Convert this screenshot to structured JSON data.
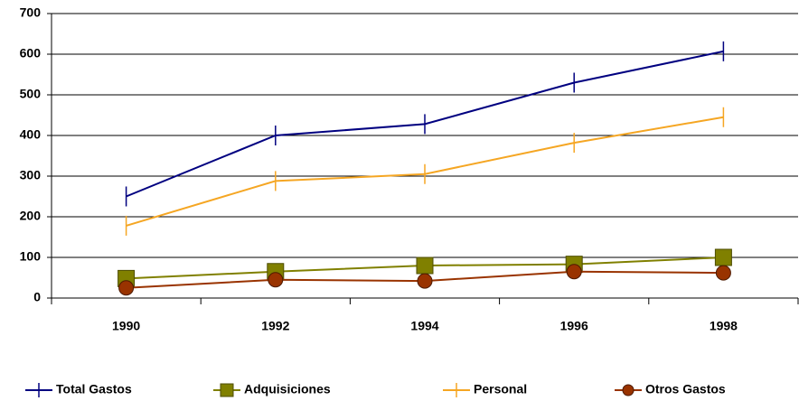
{
  "chart_data": {
    "type": "line",
    "categories": [
      "1990",
      "1992",
      "1994",
      "1996",
      "1998"
    ],
    "series": [
      {
        "name": "Total Gastos",
        "color": "#000080",
        "marker": "tick",
        "values": [
          250,
          400,
          428,
          530,
          607
        ]
      },
      {
        "name": "Adquisiciones",
        "color": "#808000",
        "marker": "square",
        "values": [
          48,
          65,
          80,
          83,
          100
        ]
      },
      {
        "name": "Personal",
        "color": "#f5a623",
        "marker": "tick",
        "values": [
          178,
          288,
          305,
          382,
          445
        ]
      },
      {
        "name": "Otros Gastos",
        "color": "#993300",
        "marker": "circle",
        "values": [
          25,
          45,
          42,
          65,
          62
        ]
      }
    ],
    "ylim": [
      0,
      700
    ],
    "yticks": [
      0,
      100,
      200,
      300,
      400,
      500,
      600,
      700
    ],
    "grid": true,
    "legend": "bottom"
  }
}
